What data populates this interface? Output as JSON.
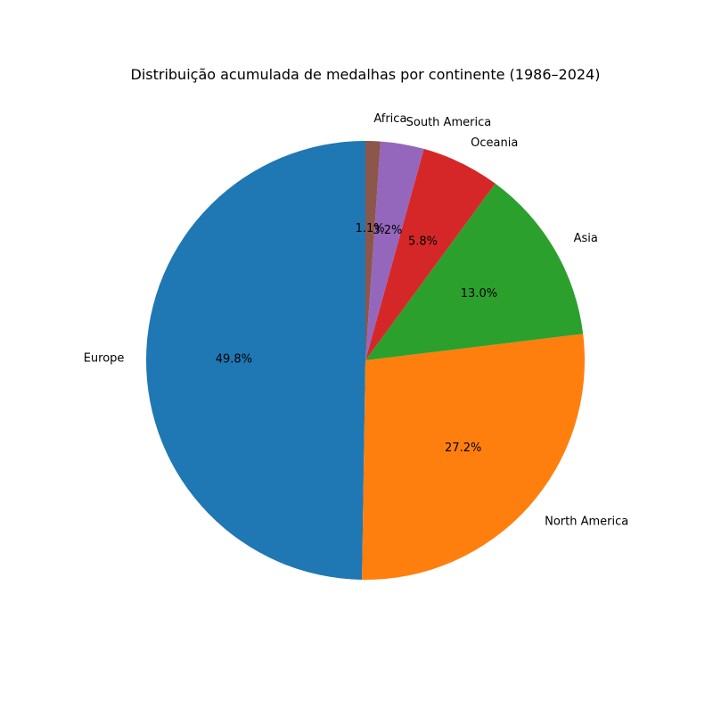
{
  "chart_data": {
    "type": "pie",
    "title": "Distribuição acumulada de medalhas por continente (1986–2024)",
    "start_angle_deg": 90,
    "direction": "counterclockwise",
    "slices": [
      {
        "label": "Europe",
        "value": 49.8,
        "pct_label": "49.8%",
        "color": "#1f77b4"
      },
      {
        "label": "North America",
        "value": 27.2,
        "pct_label": "27.2%",
        "color": "#ff7f0e"
      },
      {
        "label": "Asia",
        "value": 13.0,
        "pct_label": "13.0%",
        "color": "#2ca02c"
      },
      {
        "label": "Oceania",
        "value": 5.8,
        "pct_label": "5.8%",
        "color": "#d62728"
      },
      {
        "label": "South America",
        "value": 3.2,
        "pct_label": "3.2%",
        "color": "#9467bd"
      },
      {
        "label": "Africa",
        "value": 1.1,
        "pct_label": "1.1%",
        "color": "#8c564b"
      }
    ]
  }
}
